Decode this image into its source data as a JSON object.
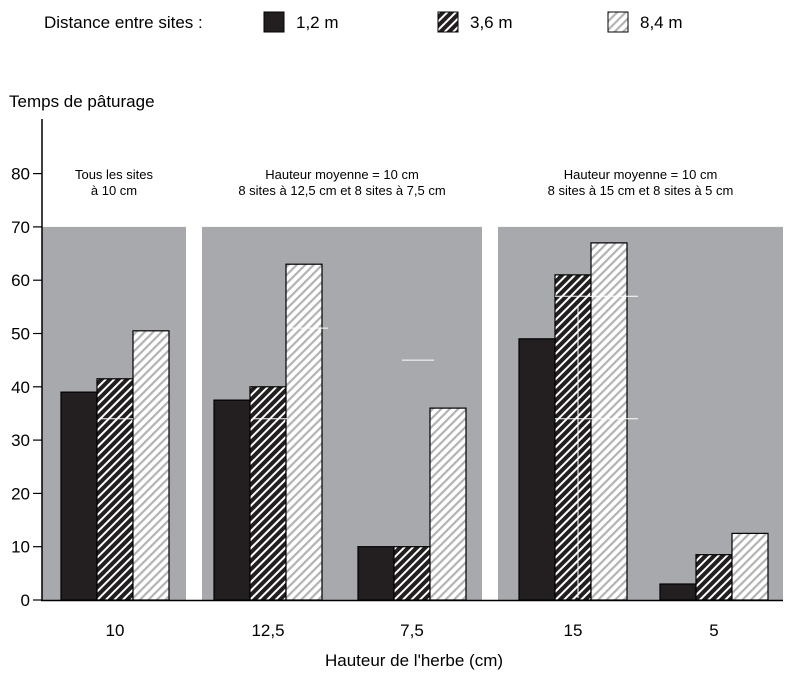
{
  "chart_data": {
    "type": "bar",
    "ylabel": "Temps de pâturage",
    "xlabel": "Hauteur de l'herbe (cm)",
    "ylim": [
      0,
      85
    ],
    "yticks": [
      0,
      10,
      20,
      30,
      40,
      50,
      60,
      70,
      80
    ],
    "legend": {
      "title": "Distance entre sites :",
      "placement": "top"
    },
    "categories": [
      "10",
      "12,5",
      "7,5",
      "15",
      "5"
    ],
    "series": [
      {
        "name": "1,2 m",
        "pattern": "solid",
        "values": [
          39,
          37.5,
          10,
          49,
          3
        ]
      },
      {
        "name": "3,6 m",
        "pattern": "dense-diagonal",
        "values": [
          41.5,
          40,
          10,
          61,
          8.5
        ]
      },
      {
        "name": "8,4 m",
        "pattern": "light-diagonal",
        "values": [
          50.5,
          63,
          36,
          67,
          12.5
        ]
      }
    ],
    "panels": [
      {
        "label_lines": [
          "Tous les sites",
          "à 10 cm"
        ],
        "categories": [
          0
        ],
        "top_value": 70
      },
      {
        "label_lines": [
          "Hauteur moyenne = 10 cm",
          "8 sites à 12,5 cm et 8 sites à 7,5 cm"
        ],
        "categories": [
          1,
          2
        ],
        "top_value": 70
      },
      {
        "label_lines": [
          "Hauteur moyenne = 10 cm",
          "8 sites à 15 cm et 8 sites à 5 cm"
        ],
        "categories": [
          3,
          4
        ],
        "top_value": 70
      }
    ],
    "colors": {
      "panel": "#a7a9ac",
      "solid": "#231f20",
      "dense_bg": "#231f20",
      "dense_stripe": "#ffffff",
      "light_bg": "#ffffff",
      "light_stripe": "#b3b3b3",
      "gridline": "#ffffff"
    },
    "grid": "partial-white"
  }
}
